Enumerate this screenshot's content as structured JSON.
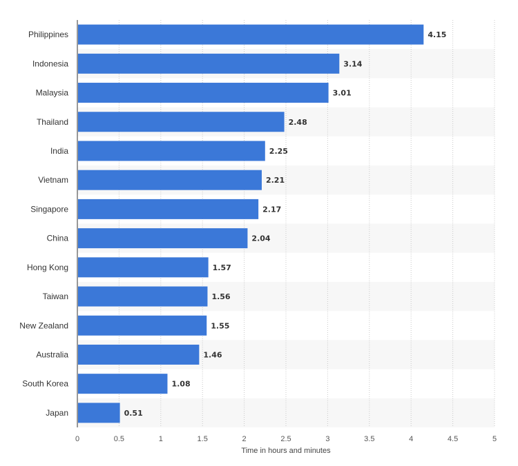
{
  "chart_data": {
    "type": "bar",
    "orientation": "horizontal",
    "categories": [
      "Philippines",
      "Indonesia",
      "Malaysia",
      "Thailand",
      "India",
      "Vietnam",
      "Singapore",
      "China",
      "Hong Kong",
      "Taiwan",
      "New Zealand",
      "Australia",
      "South Korea",
      "Japan"
    ],
    "values": [
      4.15,
      3.14,
      3.01,
      2.48,
      2.25,
      2.21,
      2.17,
      2.04,
      1.57,
      1.56,
      1.55,
      1.46,
      1.08,
      0.51
    ],
    "value_labels": [
      "4.15",
      "3.14",
      "3.01",
      "2.48",
      "2.25",
      "2.21",
      "2.17",
      "2.04",
      "1.57",
      "1.56",
      "1.55",
      "1.46",
      "1.08",
      "0.51"
    ],
    "xlabel": "Time in hours and minutes",
    "xlim": [
      0,
      5
    ],
    "xticks": [
      "0",
      "0.5",
      "1",
      "1.5",
      "2",
      "2.5",
      "3",
      "3.5",
      "4",
      "4.5",
      "5"
    ],
    "grid": "vertical dotted",
    "bar_color": "#3b78d8",
    "stripe_color": "#f7f7f7"
  }
}
